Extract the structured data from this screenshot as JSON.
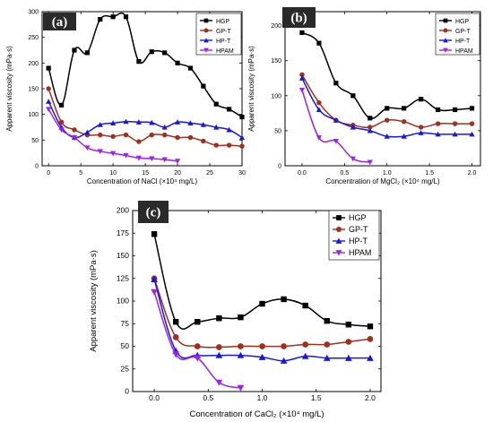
{
  "series_style": [
    {
      "name": "HGP",
      "color": "#000000",
      "marker": "square"
    },
    {
      "name": "GP-T",
      "color": "#a0301c",
      "marker": "circle"
    },
    {
      "name": "HP-T",
      "color": "#1818e0",
      "marker": "triangle-up"
    },
    {
      "name": "HPAM",
      "color": "#a020f0",
      "marker": "triangle-down"
    }
  ],
  "chart_data": [
    {
      "id": "a",
      "type": "line",
      "panel_label": "(a)",
      "xlabel": "Concentration of NaCl (×10⁴ mg/L)",
      "ylabel": "Apparent viscosity (mPa·s)",
      "xlim": [
        -1,
        30
      ],
      "ylim": [
        0,
        300
      ],
      "xticks": [
        0,
        5,
        10,
        15,
        20,
        25,
        30
      ],
      "yticks": [
        0,
        50,
        100,
        150,
        200,
        250,
        300
      ],
      "legend_position": "top-right",
      "series": [
        {
          "name": "HGP",
          "x": [
            0,
            2,
            4,
            6,
            8,
            10,
            12,
            14,
            16,
            18,
            20,
            22,
            24,
            26,
            28,
            30
          ],
          "y": [
            190,
            118,
            225,
            220,
            285,
            290,
            290,
            203,
            222,
            220,
            200,
            190,
            155,
            120,
            110,
            95
          ]
        },
        {
          "name": "GP-T",
          "x": [
            0,
            2,
            4,
            6,
            8,
            10,
            12,
            14,
            16,
            18,
            20,
            22,
            24,
            26,
            28,
            30
          ],
          "y": [
            150,
            85,
            70,
            60,
            60,
            57,
            60,
            47,
            60,
            60,
            55,
            55,
            48,
            40,
            40,
            38
          ]
        },
        {
          "name": "HP-T",
          "x": [
            0,
            2,
            4,
            6,
            8,
            10,
            12,
            14,
            16,
            18,
            20,
            22,
            24,
            26,
            28,
            30
          ],
          "y": [
            125,
            75,
            55,
            65,
            80,
            83,
            86,
            85,
            84,
            75,
            85,
            83,
            80,
            75,
            70,
            55
          ]
        },
        {
          "name": "HPAM",
          "x": [
            0,
            2,
            4,
            6,
            8,
            10,
            12,
            14,
            16,
            18,
            20
          ],
          "y": [
            110,
            70,
            55,
            35,
            28,
            24,
            20,
            15,
            14,
            12,
            9
          ]
        }
      ]
    },
    {
      "id": "b",
      "type": "line",
      "panel_label": "(b)",
      "xlabel": "Concentration of MgCl₂ (×10⁴ mg/L)",
      "ylabel": "Apparent viscosity (mPa·s)",
      "xlim": [
        -0.2,
        2.1
      ],
      "ylim": [
        0,
        220
      ],
      "xticks": [
        0.0,
        0.5,
        1.0,
        1.5,
        2.0
      ],
      "yticks": [
        0,
        50,
        100,
        150,
        200
      ],
      "legend_position": "top-right",
      "series": [
        {
          "name": "HGP",
          "x": [
            0,
            0.2,
            0.4,
            0.6,
            0.8,
            1.0,
            1.2,
            1.4,
            1.6,
            1.8,
            2.0
          ],
          "y": [
            190,
            175,
            118,
            100,
            68,
            82,
            82,
            95,
            80,
            80,
            82
          ]
        },
        {
          "name": "GP-T",
          "x": [
            0,
            0.2,
            0.4,
            0.6,
            0.8,
            1.0,
            1.2,
            1.4,
            1.6,
            1.8,
            2.0
          ],
          "y": [
            130,
            90,
            65,
            58,
            55,
            65,
            63,
            55,
            60,
            60,
            60
          ]
        },
        {
          "name": "HP-T",
          "x": [
            0,
            0.2,
            0.4,
            0.6,
            0.8,
            1.0,
            1.2,
            1.4,
            1.6,
            1.8,
            2.0
          ],
          "y": [
            125,
            80,
            65,
            55,
            50,
            42,
            42,
            47,
            45,
            45,
            45
          ]
        },
        {
          "name": "HPAM",
          "x": [
            0,
            0.2,
            0.4,
            0.6,
            0.8
          ],
          "y": [
            108,
            40,
            35,
            10,
            5
          ]
        }
      ]
    },
    {
      "id": "c",
      "type": "line",
      "panel_label": "(c)",
      "xlabel": "Concentration of CaCl₂ (×10⁴ mg/L)",
      "ylabel": "Apparent viscosity (mPa·s)",
      "xlim": [
        -0.2,
        2.1
      ],
      "ylim": [
        0,
        200
      ],
      "xticks": [
        0.0,
        0.5,
        1.0,
        1.5,
        2.0
      ],
      "yticks": [
        0,
        25,
        50,
        75,
        100,
        125,
        150,
        175,
        200
      ],
      "legend_position": "top-right",
      "series": [
        {
          "name": "HGP",
          "x": [
            0,
            0.2,
            0.4,
            0.6,
            0.8,
            1.0,
            1.2,
            1.4,
            1.6,
            1.8,
            2.0
          ],
          "y": [
            174,
            77,
            77,
            81,
            82,
            97,
            102,
            95,
            78,
            74,
            72
          ]
        },
        {
          "name": "GP-T",
          "x": [
            0,
            0.2,
            0.4,
            0.6,
            0.8,
            1.0,
            1.2,
            1.4,
            1.6,
            1.8,
            2.0
          ],
          "y": [
            125,
            60,
            50,
            49,
            50,
            50,
            50,
            52,
            52,
            55,
            58
          ]
        },
        {
          "name": "HP-T",
          "x": [
            0,
            0.2,
            0.4,
            0.6,
            0.8,
            1.0,
            1.2,
            1.4,
            1.6,
            1.8,
            2.0
          ],
          "y": [
            124,
            45,
            40,
            40,
            40,
            38,
            34,
            39,
            37,
            37,
            37
          ]
        },
        {
          "name": "HPAM",
          "x": [
            0,
            0.2,
            0.4,
            0.6,
            0.8
          ],
          "y": [
            110,
            41,
            37,
            10,
            4
          ]
        }
      ]
    }
  ]
}
